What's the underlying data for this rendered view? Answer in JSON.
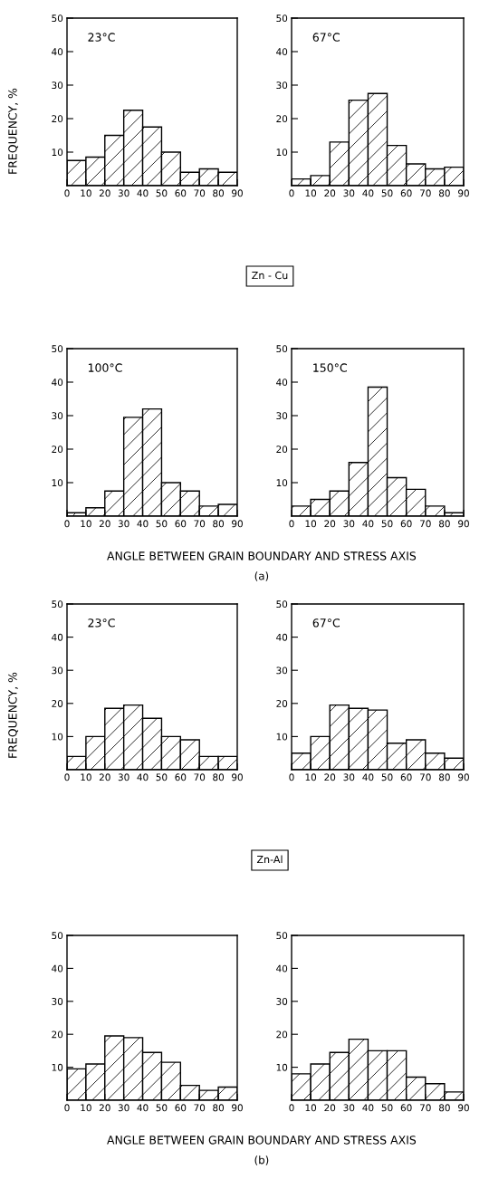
{
  "chart_data": [
    {
      "type": "histogram",
      "title": "23°C",
      "ylabel": "FREQUENCY, %",
      "annotations": [
        "Zn - Cu"
      ],
      "bins": [
        0,
        10,
        20,
        30,
        40,
        50,
        60,
        70,
        80,
        90
      ],
      "values": [
        7.5,
        8.5,
        15,
        22.5,
        17.5,
        10,
        4,
        5,
        4
      ],
      "color": "#000000",
      "xlim": [
        0,
        90
      ],
      "ylim": [
        0,
        50
      ],
      "xticks": [
        0,
        10,
        20,
        30,
        40,
        50,
        60,
        70,
        80,
        90
      ],
      "yticks": [
        10,
        20,
        30,
        40,
        50
      ]
    },
    {
      "type": "histogram",
      "title": "67°C",
      "bins": [
        0,
        10,
        20,
        30,
        40,
        50,
        60,
        70,
        80,
        90
      ],
      "values": [
        2,
        3,
        13,
        25.5,
        27.5,
        12,
        6.5,
        5,
        5.5
      ],
      "color": "#000000",
      "xlim": [
        0,
        90
      ],
      "ylim": [
        0,
        50
      ],
      "xticks": [
        0,
        10,
        20,
        30,
        40,
        50,
        60,
        70,
        80,
        90
      ],
      "yticks": [
        10,
        20,
        30,
        40,
        50
      ]
    },
    {
      "type": "histogram",
      "title": "100°C",
      "xlabel": "ANGLE BETWEEN GRAIN BOUNDARY AND STRESS AXIS",
      "annotations": [
        "(a)"
      ],
      "bins": [
        0,
        10,
        20,
        30,
        40,
        50,
        60,
        70,
        80,
        90
      ],
      "values": [
        1,
        2.5,
        7.5,
        29.5,
        32,
        10,
        7.5,
        3,
        3.5
      ],
      "color": "#000000",
      "xlim": [
        0,
        90
      ],
      "ylim": [
        0,
        50
      ],
      "xticks": [
        0,
        10,
        20,
        30,
        40,
        50,
        60,
        70,
        80,
        90
      ],
      "yticks": [
        10,
        20,
        30,
        40,
        50
      ]
    },
    {
      "type": "histogram",
      "title": "150°C",
      "bins": [
        0,
        10,
        20,
        30,
        40,
        50,
        60,
        70,
        80,
        90
      ],
      "values": [
        3,
        5,
        7.5,
        16,
        38.5,
        11.5,
        8,
        3,
        1
      ],
      "color": "#000000",
      "xlim": [
        0,
        90
      ],
      "ylim": [
        0,
        50
      ],
      "xticks": [
        0,
        10,
        20,
        30,
        40,
        50,
        60,
        70,
        80,
        90
      ],
      "yticks": [
        10,
        20,
        30,
        40,
        50
      ]
    },
    {
      "type": "histogram",
      "title": "23°C",
      "ylabel": "FREQUENCY, %",
      "annotations": [
        "Zn-Al"
      ],
      "bins": [
        0,
        10,
        20,
        30,
        40,
        50,
        60,
        70,
        80,
        90
      ],
      "values": [
        4,
        10,
        18.5,
        19.5,
        15.5,
        10,
        9,
        4,
        4
      ],
      "color": "#000000",
      "xlim": [
        0,
        90
      ],
      "ylim": [
        0,
        50
      ],
      "xticks": [
        0,
        10,
        20,
        30,
        40,
        50,
        60,
        70,
        80,
        90
      ],
      "yticks": [
        10,
        20,
        30,
        40,
        50
      ]
    },
    {
      "type": "histogram",
      "title": "67°C",
      "bins": [
        0,
        10,
        20,
        30,
        40,
        50,
        60,
        70,
        80,
        90
      ],
      "values": [
        5,
        10,
        19.5,
        18.5,
        18,
        8,
        9,
        5,
        3.5
      ],
      "color": "#000000",
      "xlim": [
        0,
        90
      ],
      "ylim": [
        0,
        50
      ],
      "xticks": [
        0,
        10,
        20,
        30,
        40,
        50,
        60,
        70,
        80,
        90
      ],
      "yticks": [
        10,
        20,
        30,
        40,
        50
      ]
    },
    {
      "type": "histogram",
      "xlabel": "ANGLE BETWEEN GRAIN BOUNDARY AND STRESS AXIS",
      "annotations": [
        "(b)"
      ],
      "bins": [
        0,
        10,
        20,
        30,
        40,
        50,
        60,
        70,
        80,
        90
      ],
      "values": [
        9.5,
        11,
        19.5,
        19,
        14.5,
        11.5,
        4.5,
        3,
        4
      ],
      "color": "#000000",
      "xlim": [
        0,
        90
      ],
      "ylim": [
        0,
        50
      ],
      "xticks": [
        0,
        10,
        20,
        30,
        40,
        50,
        60,
        70,
        80,
        90
      ],
      "yticks": [
        10,
        20,
        30,
        40,
        50
      ]
    },
    {
      "type": "histogram",
      "bins": [
        0,
        10,
        20,
        30,
        40,
        50,
        60,
        70,
        80,
        90
      ],
      "values": [
        8,
        11,
        14.5,
        18.5,
        15,
        15,
        7,
        5,
        2.5
      ],
      "color": "#000000",
      "xlim": [
        0,
        90
      ],
      "ylim": [
        0,
        50
      ],
      "xticks": [
        0,
        10,
        20,
        30,
        40,
        50,
        60,
        70,
        80,
        90
      ],
      "yticks": [
        10,
        20,
        30,
        40,
        50
      ]
    }
  ]
}
